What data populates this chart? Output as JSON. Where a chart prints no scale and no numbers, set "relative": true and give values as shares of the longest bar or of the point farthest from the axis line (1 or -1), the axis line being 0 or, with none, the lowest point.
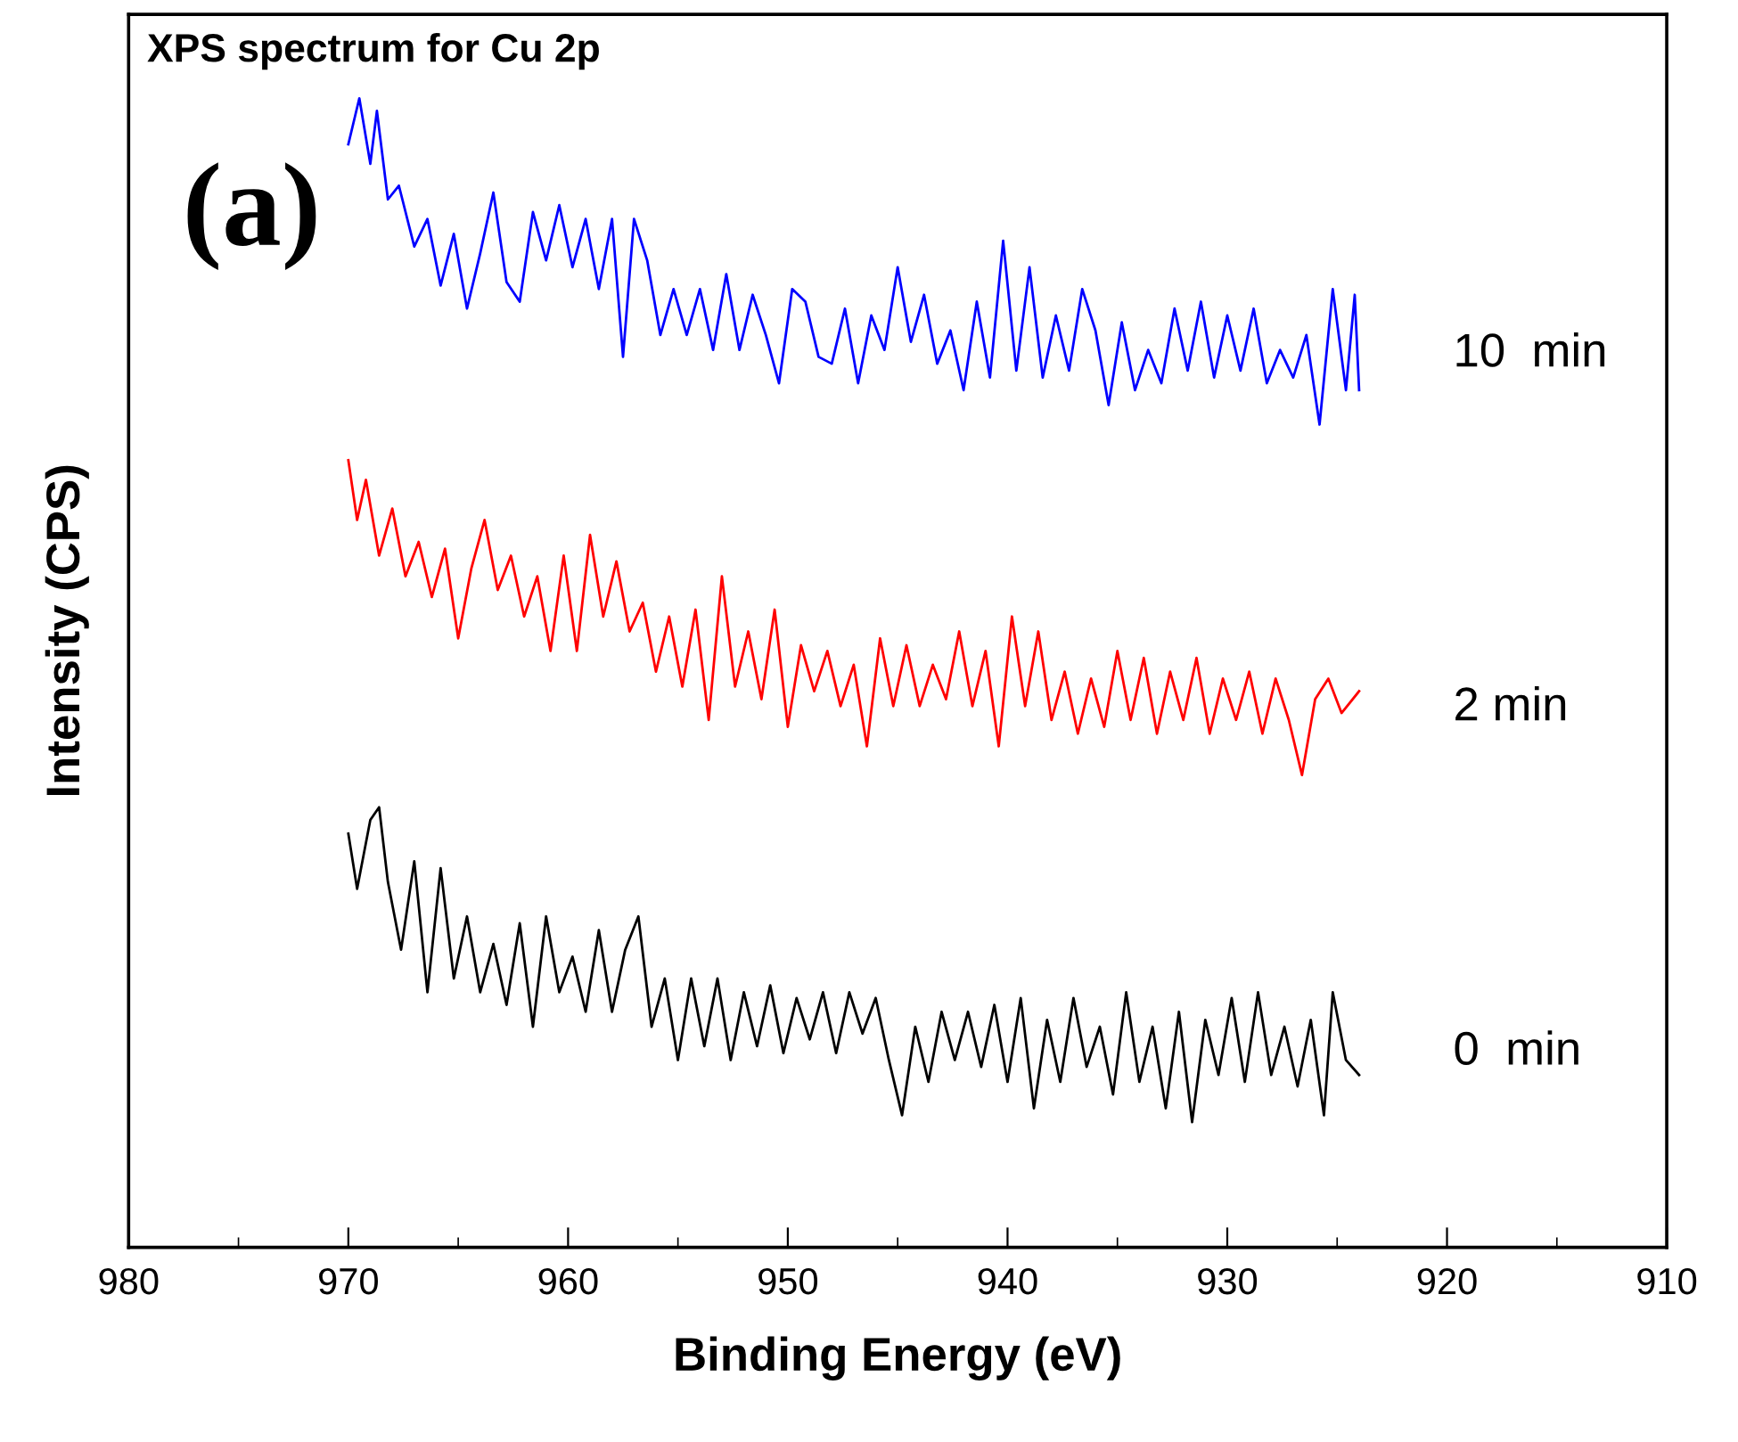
{
  "chart_data": {
    "type": "line",
    "title": "XPS spectrum for Cu 2p",
    "xlabel": "Binding Energy (eV)",
    "ylabel": "Intensity (CPS)",
    "relative": true,
    "xlim": [
      980,
      910
    ],
    "xticks": [
      980,
      970,
      960,
      950,
      940,
      930,
      920,
      910
    ],
    "grid": false,
    "legend": false,
    "marker": "none",
    "line_style": "solid",
    "tick_labels": "x",
    "annotations": [
      "(a)"
    ],
    "series": [
      {
        "name": "10  min",
        "color": "#0000ff",
        "x": [
          970.0,
          969.5,
          969.0,
          968.7,
          968.2,
          967.7,
          967.0,
          966.4,
          965.8,
          965.2,
          964.6,
          964.0,
          963.4,
          962.8,
          962.2,
          961.6,
          961.0,
          960.4,
          959.8,
          959.2,
          958.6,
          958.0,
          957.5,
          957.0,
          956.4,
          955.8,
          955.2,
          954.6,
          954.0,
          953.4,
          952.8,
          952.2,
          951.6,
          951.0,
          950.4,
          949.8,
          949.2,
          948.6,
          948.0,
          947.4,
          946.8,
          946.2,
          945.6,
          945.0,
          944.4,
          943.8,
          943.2,
          942.6,
          942.0,
          941.4,
          940.8,
          940.2,
          939.6,
          939.0,
          938.4,
          937.8,
          937.2,
          936.6,
          936.0,
          935.4,
          934.8,
          934.2,
          933.6,
          933.0,
          932.4,
          931.8,
          931.2,
          930.6,
          930.0,
          929.4,
          928.8,
          928.2,
          927.6,
          927.0,
          926.4,
          925.8,
          925.2,
          924.6,
          924.2,
          924.0
        ],
        "values": [
          0.96,
          1.0,
          0.943,
          0.989,
          0.912,
          0.924,
          0.871,
          0.895,
          0.837,
          0.882,
          0.817,
          0.865,
          0.918,
          0.84,
          0.823,
          0.901,
          0.859,
          0.907,
          0.853,
          0.895,
          0.834,
          0.895,
          0.775,
          0.895,
          0.859,
          0.794,
          0.834,
          0.794,
          0.834,
          0.781,
          0.847,
          0.781,
          0.829,
          0.794,
          0.752,
          0.834,
          0.823,
          0.775,
          0.769,
          0.817,
          0.752,
          0.811,
          0.781,
          0.853,
          0.788,
          0.829,
          0.769,
          0.798,
          0.746,
          0.823,
          0.757,
          0.876,
          0.763,
          0.853,
          0.757,
          0.811,
          0.763,
          0.834,
          0.798,
          0.733,
          0.805,
          0.746,
          0.781,
          0.752,
          0.817,
          0.763,
          0.823,
          0.757,
          0.811,
          0.763,
          0.817,
          0.752,
          0.781,
          0.757,
          0.794,
          0.716,
          0.834,
          0.746,
          0.829,
          0.746
        ]
      },
      {
        "name": "2 min",
        "color": "#ff0000",
        "x": [
          970.0,
          969.6,
          969.2,
          968.6,
          968.0,
          967.4,
          966.8,
          966.2,
          965.6,
          965.0,
          964.4,
          963.8,
          963.2,
          962.6,
          962.0,
          961.4,
          960.8,
          960.2,
          959.6,
          959.0,
          958.4,
          957.8,
          957.2,
          956.6,
          956.0,
          955.4,
          954.8,
          954.2,
          953.6,
          953.0,
          952.4,
          951.8,
          951.2,
          950.6,
          950.0,
          949.4,
          948.8,
          948.2,
          947.6,
          947.0,
          946.4,
          945.8,
          945.2,
          944.6,
          944.0,
          943.4,
          942.8,
          942.2,
          941.6,
          941.0,
          940.4,
          939.8,
          939.2,
          938.6,
          938.0,
          937.4,
          936.8,
          936.2,
          935.6,
          935.0,
          934.4,
          933.8,
          933.2,
          932.6,
          932.0,
          931.4,
          930.8,
          930.2,
          929.6,
          929.0,
          928.4,
          927.8,
          927.2,
          926.6,
          926.0,
          925.4,
          924.8,
          924.0
        ],
        "values": [
          0.685,
          0.633,
          0.668,
          0.602,
          0.643,
          0.584,
          0.614,
          0.566,
          0.608,
          0.53,
          0.591,
          0.633,
          0.572,
          0.602,
          0.549,
          0.584,
          0.519,
          0.602,
          0.519,
          0.62,
          0.549,
          0.597,
          0.536,
          0.561,
          0.501,
          0.549,
          0.488,
          0.555,
          0.459,
          0.584,
          0.488,
          0.536,
          0.477,
          0.555,
          0.453,
          0.524,
          0.484,
          0.519,
          0.471,
          0.507,
          0.436,
          0.53,
          0.471,
          0.524,
          0.471,
          0.507,
          0.477,
          0.536,
          0.471,
          0.519,
          0.436,
          0.549,
          0.471,
          0.536,
          0.459,
          0.501,
          0.447,
          0.495,
          0.453,
          0.519,
          0.459,
          0.513,
          0.447,
          0.501,
          0.459,
          0.513,
          0.447,
          0.495,
          0.459,
          0.501,
          0.447,
          0.495,
          0.459,
          0.411,
          0.477,
          0.495,
          0.465,
          0.484
        ]
      },
      {
        "name": "0  min",
        "color": "#000000",
        "x": [
          970.0,
          969.6,
          969.0,
          968.6,
          968.2,
          967.6,
          967.0,
          966.4,
          965.8,
          965.2,
          964.6,
          964.0,
          963.4,
          962.8,
          962.2,
          961.6,
          961.0,
          960.4,
          959.8,
          959.2,
          958.6,
          958.0,
          957.4,
          956.8,
          956.2,
          955.6,
          955.0,
          954.4,
          953.8,
          953.2,
          952.6,
          952.0,
          951.4,
          950.8,
          950.2,
          949.6,
          949.0,
          948.4,
          947.8,
          947.2,
          946.6,
          946.0,
          945.4,
          944.8,
          944.2,
          943.6,
          943.0,
          942.4,
          941.8,
          941.2,
          940.6,
          940.0,
          939.4,
          938.8,
          938.2,
          937.6,
          937.0,
          936.4,
          935.8,
          935.2,
          934.6,
          934.0,
          933.4,
          932.8,
          932.2,
          931.6,
          931.0,
          930.4,
          929.8,
          929.2,
          928.6,
          928.0,
          927.4,
          926.8,
          926.2,
          925.6,
          925.2,
          924.6,
          924.0
        ],
        "values": [
          0.36,
          0.312,
          0.372,
          0.383,
          0.318,
          0.259,
          0.336,
          0.222,
          0.33,
          0.234,
          0.288,
          0.222,
          0.264,
          0.211,
          0.282,
          0.192,
          0.288,
          0.222,
          0.253,
          0.205,
          0.276,
          0.205,
          0.259,
          0.288,
          0.192,
          0.234,
          0.163,
          0.234,
          0.175,
          0.234,
          0.163,
          0.222,
          0.175,
          0.228,
          0.169,
          0.217,
          0.181,
          0.222,
          0.169,
          0.222,
          0.186,
          0.217,
          0.163,
          0.115,
          0.192,
          0.144,
          0.205,
          0.163,
          0.205,
          0.157,
          0.211,
          0.144,
          0.217,
          0.121,
          0.198,
          0.144,
          0.217,
          0.157,
          0.192,
          0.133,
          0.222,
          0.144,
          0.192,
          0.121,
          0.205,
          0.109,
          0.198,
          0.15,
          0.217,
          0.144,
          0.222,
          0.15,
          0.192,
          0.14,
          0.198,
          0.115,
          0.222,
          0.163,
          0.15
        ]
      }
    ]
  }
}
